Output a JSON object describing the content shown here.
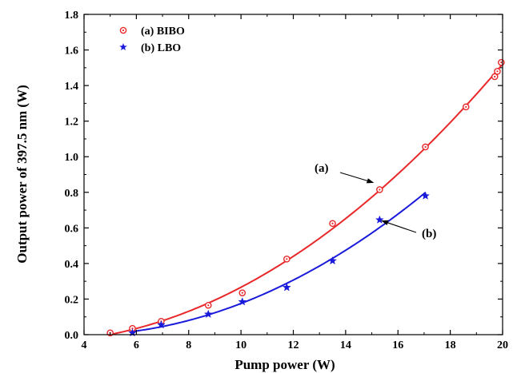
{
  "chart_data": {
    "type": "scatter",
    "title": "",
    "xlabel": "Pump power (W)",
    "ylabel": "Output power of 397.5 nm (W)",
    "xlim": [
      4,
      20
    ],
    "ylim": [
      0,
      1.8
    ],
    "x_ticks": [
      "4",
      "6",
      "8",
      "10",
      "12",
      "14",
      "16",
      "18",
      "20"
    ],
    "y_ticks": [
      "0.0",
      "0.2",
      "0.4",
      "0.6",
      "0.8",
      "1.0",
      "1.2",
      "1.4",
      "1.6",
      "1.8"
    ],
    "grid": false,
    "legend_position": "top-left",
    "series": [
      {
        "name": "(a) BIBO",
        "color": "#e8282a",
        "marker": "circle-dot",
        "fit": "quadratic",
        "points": [
          [
            5.0,
            0.01
          ],
          [
            5.85,
            0.035
          ],
          [
            6.95,
            0.075
          ],
          [
            8.75,
            0.165
          ],
          [
            10.05,
            0.235
          ],
          [
            11.75,
            0.425
          ],
          [
            13.5,
            0.625
          ],
          [
            15.3,
            0.815
          ],
          [
            17.05,
            1.055
          ],
          [
            18.6,
            1.28
          ],
          [
            19.7,
            1.45
          ],
          [
            19.8,
            1.48
          ],
          [
            19.95,
            1.53
          ]
        ]
      },
      {
        "name": "(b) LBO",
        "color": "#1a1adb",
        "marker": "star",
        "fit": "quadratic",
        "points": [
          [
            5.85,
            0.01
          ],
          [
            6.95,
            0.055
          ],
          [
            8.75,
            0.115
          ],
          [
            10.05,
            0.185
          ],
          [
            11.75,
            0.265
          ],
          [
            13.5,
            0.415
          ],
          [
            15.3,
            0.645
          ],
          [
            17.05,
            0.78
          ]
        ]
      }
    ],
    "annotations": [
      {
        "label": "(a)",
        "series": 0
      },
      {
        "label": "(b)",
        "series": 1
      }
    ]
  }
}
